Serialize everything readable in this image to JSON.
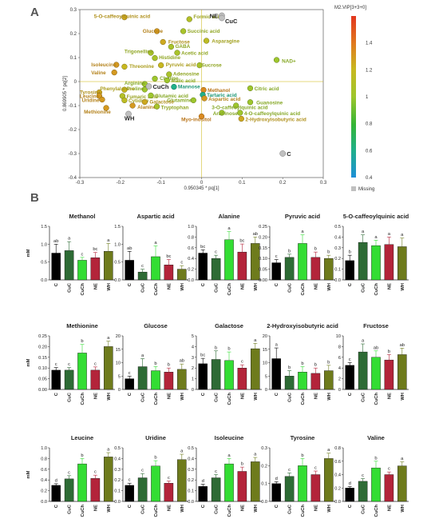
{
  "panel_labels": {
    "a": "A",
    "b": "B"
  },
  "colors": {
    "C": "#000000",
    "CuC": "#2e6b35",
    "CuCh": "#33dd33",
    "NE": "#b3243a",
    "WH": "#6e7b1c",
    "missing": "#c0c0c0",
    "gradient": [
      "#1e8fd8",
      "#20b08a",
      "#35b535",
      "#9ec62d",
      "#c8b820",
      "#e07a1f",
      "#e2361f"
    ]
  },
  "chart_data": [
    {
      "type": "scatter",
      "title": "",
      "xlabel": "0.950345 * pq[1]",
      "ylabel": "0.869905 * pq[2]",
      "xlim": [
        -0.3,
        0.3
      ],
      "ylim": [
        -0.4,
        0.3
      ],
      "xticks": [
        "-0.3",
        "-0.2",
        "-0.1",
        "0",
        "0.1",
        "0.2",
        "0.3"
      ],
      "yticks": [
        "-0.4",
        "-0.3",
        "-0.2",
        "-0.1",
        "0",
        "0.1",
        "0.2",
        "0.3"
      ],
      "colorbar": {
        "title": "M2.VIP[3+3+0]",
        "ticks": [
          "0.4",
          "0.6",
          "0.8",
          "1",
          "1.2",
          "1.4"
        ],
        "range": [
          0.4,
          1.6
        ],
        "missing_label": "Missing"
      },
      "grid": false,
      "points": [
        {
          "label": "5-O-caffeoylquinic acid",
          "x": -0.19,
          "y": 0.268,
          "vip": 1.25,
          "lx": -0.265,
          "ly": 0.272
        },
        {
          "label": "Formic acid",
          "x": -0.03,
          "y": 0.26,
          "vip": 1.1,
          "lx": -0.02,
          "ly": 0.27
        },
        {
          "label": "Glucose",
          "x": -0.11,
          "y": 0.21,
          "vip": 1.3,
          "lx": -0.145,
          "ly": 0.21
        },
        {
          "label": "Succinic acid",
          "x": -0.045,
          "y": 0.21,
          "vip": 1.05,
          "lx": -0.035,
          "ly": 0.21
        },
        {
          "label": "Fructose",
          "x": -0.095,
          "y": 0.165,
          "vip": 1.25,
          "lx": -0.082,
          "ly": 0.165
        },
        {
          "label": "Asparagine",
          "x": 0.012,
          "y": 0.17,
          "vip": 1.15,
          "lx": 0.025,
          "ly": 0.168
        },
        {
          "label": "GABA",
          "x": -0.075,
          "y": 0.145,
          "vip": 1.05,
          "lx": -0.065,
          "ly": 0.146
        },
        {
          "label": "Trigonelline",
          "x": -0.125,
          "y": 0.12,
          "vip": 1.05,
          "lx": -0.19,
          "ly": 0.125
        },
        {
          "label": "Acetic acid",
          "x": -0.06,
          "y": 0.12,
          "vip": 1.05,
          "lx": -0.05,
          "ly": 0.118
        },
        {
          "label": "Histidine",
          "x": -0.115,
          "y": 0.098,
          "vip": 1.05,
          "lx": -0.105,
          "ly": 0.1
        },
        {
          "label": "NAD+",
          "x": 0.185,
          "y": 0.09,
          "vip": 1.0,
          "lx": 0.198,
          "ly": 0.085
        },
        {
          "label": "Isoleucine",
          "x": -0.21,
          "y": 0.07,
          "vip": 1.3,
          "lx": -0.272,
          "ly": 0.07
        },
        {
          "label": "Threonine",
          "x": -0.19,
          "y": 0.062,
          "vip": 1.2,
          "lx": -0.178,
          "ly": 0.064
        },
        {
          "label": "Pyruvic acid",
          "x": -0.1,
          "y": 0.068,
          "vip": 1.2,
          "lx": -0.088,
          "ly": 0.07
        },
        {
          "label": "Sucrose",
          "x": -0.005,
          "y": 0.068,
          "vip": 1.05,
          "lx": 0.0,
          "ly": 0.068
        },
        {
          "label": "Valine",
          "x": -0.215,
          "y": 0.038,
          "vip": 1.3,
          "lx": -0.272,
          "ly": 0.036
        },
        {
          "label": "Adenosine",
          "x": -0.08,
          "y": 0.03,
          "vip": 1.05,
          "lx": -0.07,
          "ly": 0.032
        },
        {
          "label": "Choline",
          "x": -0.115,
          "y": 0.012,
          "vip": 1.0,
          "lx": -0.103,
          "ly": 0.013
        },
        {
          "label": "Malic acid",
          "x": -0.085,
          "y": 0.005,
          "vip": 1.0,
          "lx": -0.075,
          "ly": 0.004
        },
        {
          "label": "Arginine",
          "x": -0.14,
          "y": -0.01,
          "vip": 1.0,
          "lx": -0.19,
          "ly": -0.006
        },
        {
          "label": "Proline",
          "x": -0.14,
          "y": -0.033,
          "vip": 1.0,
          "lx": -0.185,
          "ly": -0.03
        },
        {
          "label": "Mannose",
          "x": -0.068,
          "y": -0.022,
          "vip": 0.6,
          "lx": -0.058,
          "ly": -0.022
        },
        {
          "label": "Tyrosine",
          "x": -0.252,
          "y": -0.045,
          "vip": 1.25,
          "lx": -0.3,
          "ly": -0.045
        },
        {
          "label": "Phenylalanine",
          "x": -0.19,
          "y": -0.034,
          "vip": 1.2,
          "lx": -0.25,
          "ly": -0.03
        },
        {
          "label": "Methanol",
          "x": 0.005,
          "y": -0.035,
          "vip": 1.35,
          "lx": 0.015,
          "ly": -0.037
        },
        {
          "label": "Citric acid",
          "x": 0.12,
          "y": -0.028,
          "vip": 1.0,
          "lx": 0.13,
          "ly": -0.03
        },
        {
          "label": "Leucine",
          "x": -0.252,
          "y": -0.06,
          "vip": 1.3,
          "lx": -0.3,
          "ly": -0.062
        },
        {
          "label": "Fumaric acid",
          "x": -0.195,
          "y": -0.06,
          "vip": 1.1,
          "lx": -0.185,
          "ly": -0.063
        },
        {
          "label": "Glutamic acid",
          "x": -0.125,
          "y": -0.058,
          "vip": 1.0,
          "lx": -0.115,
          "ly": -0.06
        },
        {
          "label": "Tartaric acid",
          "x": 0.003,
          "y": -0.055,
          "vip": 0.6,
          "lx": 0.013,
          "ly": -0.056
        },
        {
          "label": "Uridine",
          "x": -0.245,
          "y": -0.075,
          "vip": 1.3,
          "lx": -0.295,
          "ly": -0.079
        },
        {
          "label": "Cytidine",
          "x": -0.19,
          "y": -0.078,
          "vip": 1.15,
          "lx": -0.18,
          "ly": -0.08
        },
        {
          "label": "Glutamine",
          "x": -0.02,
          "y": -0.078,
          "vip": 1.0,
          "lx": -0.085,
          "ly": -0.078
        },
        {
          "label": "Aspartic acid",
          "x": 0.007,
          "y": -0.07,
          "vip": 1.3,
          "lx": 0.017,
          "ly": -0.073
        },
        {
          "label": "Galactose",
          "x": -0.14,
          "y": -0.085,
          "vip": 1.25,
          "lx": -0.128,
          "ly": -0.085
        },
        {
          "label": "Guanosine",
          "x": 0.12,
          "y": -0.086,
          "vip": 1.0,
          "lx": 0.135,
          "ly": -0.088
        },
        {
          "label": "Alanine",
          "x": -0.17,
          "y": -0.1,
          "vip": 1.3,
          "lx": -0.158,
          "ly": -0.106
        },
        {
          "label": "Tryptophan",
          "x": -0.11,
          "y": -0.104,
          "vip": 1.05,
          "lx": -0.1,
          "ly": -0.108
        },
        {
          "label": "3-O-caffeoylquinic acid",
          "x": 0.085,
          "y": -0.1,
          "vip": 1.0,
          "lx": 0.025,
          "ly": -0.108
        },
        {
          "label": "Methionine",
          "x": -0.235,
          "y": -0.11,
          "vip": 1.3,
          "lx": -0.29,
          "ly": -0.126
        },
        {
          "label": "Arabinose",
          "x": 0.05,
          "y": -0.13,
          "vip": 1.0,
          "lx": 0.028,
          "ly": -0.133
        },
        {
          "label": "4-O-caffeoylquinic acid",
          "x": 0.095,
          "y": -0.13,
          "vip": 1.0,
          "lx": 0.105,
          "ly": -0.133
        },
        {
          "label": "2-Hydroxyisobutyric acid",
          "x": 0.098,
          "y": -0.155,
          "vip": 1.25,
          "lx": 0.108,
          "ly": -0.158
        },
        {
          "label": "Myo-inositol",
          "x": 0.0,
          "y": -0.145,
          "vip": 1.35,
          "lx": -0.05,
          "ly": -0.158
        }
      ],
      "groups": [
        {
          "label": "NE",
          "x": 0.05,
          "y": 0.275,
          "lx": 0.02,
          "ly": 0.275
        },
        {
          "label": "CuC",
          "x": 0.05,
          "y": 0.265,
          "lx": 0.058,
          "ly": 0.253
        },
        {
          "label": "CuCh",
          "x": -0.13,
          "y": -0.02,
          "lx": -0.12,
          "ly": -0.02
        },
        {
          "label": "WH",
          "x": -0.18,
          "y": -0.135,
          "lx": -0.19,
          "ly": -0.152
        },
        {
          "label": "C",
          "x": 0.2,
          "y": -0.3,
          "lx": 0.21,
          "ly": -0.3
        }
      ]
    },
    {
      "type": "bar",
      "title": "Methanol",
      "categories": [
        "C",
        "CuC",
        "CuCh",
        "NE",
        "WH"
      ],
      "ylabel": "mM",
      "ylim": [
        0,
        1.5
      ],
      "yticks": [
        "0.0",
        "0.5",
        "1.0",
        "1.5"
      ],
      "values": [
        0.75,
        0.82,
        0.55,
        0.62,
        0.8
      ],
      "errors": [
        0.25,
        0.25,
        0.08,
        0.15,
        0.22
      ],
      "letters": [
        "ab",
        "a",
        "c",
        "bc",
        "a"
      ]
    },
    {
      "type": "bar",
      "title": "Aspartic acid",
      "categories": [
        "C",
        "CuC",
        "CuCh",
        "NE",
        "WH"
      ],
      "ylabel": "",
      "ylim": [
        0,
        1.5
      ],
      "yticks": [
        "0.0",
        "0.5",
        "1.0",
        "1.5"
      ],
      "values": [
        0.55,
        0.22,
        0.65,
        0.42,
        0.3
      ],
      "errors": [
        0.25,
        0.08,
        0.3,
        0.15,
        0.1
      ],
      "letters": [
        "ab",
        "c",
        "a",
        "bc",
        "c"
      ]
    },
    {
      "type": "bar",
      "title": "Alanine",
      "categories": [
        "C",
        "CuC",
        "CuCh",
        "NE",
        "WH"
      ],
      "ylabel": "",
      "ylim": [
        0,
        1.0
      ],
      "yticks": [
        "0.0",
        "0.2",
        "0.4",
        "0.6",
        "0.8",
        "1.0"
      ],
      "values": [
        0.5,
        0.4,
        0.75,
        0.52,
        0.68
      ],
      "errors": [
        0.06,
        0.06,
        0.15,
        0.15,
        0.12
      ],
      "letters": [
        "bc",
        "c",
        "a",
        "bc",
        "ab"
      ]
    },
    {
      "type": "bar",
      "title": "Pyruvic acid",
      "categories": [
        "C",
        "CuC",
        "CuCh",
        "NE",
        "WH"
      ],
      "ylabel": "",
      "ylim": [
        0,
        0.25
      ],
      "yticks": [
        "0.00",
        "0.05",
        "0.10",
        "0.15",
        "0.20",
        "0.25"
      ],
      "values": [
        0.08,
        0.105,
        0.17,
        0.105,
        0.1
      ],
      "errors": [
        0.015,
        0.015,
        0.04,
        0.025,
        0.015
      ],
      "letters": [
        "c",
        "b",
        "a",
        "b",
        "b"
      ]
    },
    {
      "type": "bar",
      "title": "5-O-caffeoylquinic acid",
      "categories": [
        "C",
        "CuC",
        "CuCh",
        "NE",
        "WH"
      ],
      "ylabel": "",
      "ylim": [
        0,
        0.5
      ],
      "yticks": [
        "0.0",
        "0.1",
        "0.2",
        "0.3",
        "0.4",
        "0.5"
      ],
      "values": [
        0.18,
        0.35,
        0.32,
        0.33,
        0.31
      ],
      "errors": [
        0.05,
        0.07,
        0.05,
        0.07,
        0.08
      ],
      "letters": [
        "b",
        "a",
        "a",
        "a",
        "a"
      ]
    },
    {
      "type": "bar",
      "title": "Methionine",
      "categories": [
        "C",
        "CuC",
        "CuCh",
        "NE",
        "WH"
      ],
      "ylabel": "mM",
      "ylim": [
        0,
        0.25
      ],
      "yticks": [
        "0.00",
        "0.05",
        "0.10",
        "0.15",
        "0.20",
        "0.25"
      ],
      "values": [
        0.09,
        0.09,
        0.17,
        0.09,
        0.2
      ],
      "errors": [
        0.012,
        0.012,
        0.04,
        0.015,
        0.025
      ],
      "letters": [
        "c",
        "c",
        "b",
        "c",
        "a"
      ]
    },
    {
      "type": "bar",
      "title": "Glucose",
      "categories": [
        "C",
        "CuC",
        "CuCh",
        "NE",
        "WH"
      ],
      "ylabel": "",
      "ylim": [
        0,
        20
      ],
      "yticks": [
        "0",
        "5",
        "10",
        "15",
        "20"
      ],
      "values": [
        4,
        8.5,
        7,
        6.5,
        7.5
      ],
      "errors": [
        1,
        3,
        1.5,
        1.5,
        2
      ],
      "letters": [
        "c",
        "a",
        "b",
        "b",
        "ab"
      ]
    },
    {
      "type": "bar",
      "title": "Galactose",
      "categories": [
        "C",
        "CuC",
        "CuCh",
        "NE",
        "WH"
      ],
      "ylabel": "",
      "ylim": [
        0,
        5
      ],
      "yticks": [
        "0",
        "1",
        "2",
        "3",
        "4",
        "5"
      ],
      "values": [
        2.4,
        2.8,
        2.7,
        2.0,
        3.8
      ],
      "errors": [
        0.5,
        0.8,
        0.8,
        0.3,
        0.5
      ],
      "letters": [
        "bc",
        "b",
        "b",
        "c",
        "a"
      ]
    },
    {
      "type": "bar",
      "title": "2-Hydroxyisobutyric acid",
      "categories": [
        "C",
        "CuC",
        "CuCh",
        "NE",
        "WH"
      ],
      "ylabel": "",
      "ylim": [
        0,
        20
      ],
      "yticks": [
        "0",
        "5",
        "10",
        "15",
        "20"
      ],
      "values": [
        11.5,
        5,
        6.5,
        6,
        7
      ],
      "errors": [
        4,
        2,
        2,
        2,
        2
      ],
      "letters": [
        "a",
        "b",
        "b",
        "b",
        "b"
      ]
    },
    {
      "type": "bar",
      "title": "Fructose",
      "categories": [
        "C",
        "CuC",
        "CuCh",
        "NE",
        "WH"
      ],
      "ylabel": "",
      "ylim": [
        0,
        10
      ],
      "yticks": [
        "0",
        "2",
        "4",
        "6",
        "8",
        "10"
      ],
      "values": [
        4.5,
        7,
        6,
        5.5,
        6.5
      ],
      "errors": [
        0.5,
        1.5,
        1.2,
        1,
        1.2
      ],
      "letters": [
        "c",
        "a",
        "ab",
        "b",
        "ab"
      ]
    },
    {
      "type": "bar",
      "title": "Leucine",
      "categories": [
        "C",
        "CuC",
        "CuCh",
        "NE",
        "WH"
      ],
      "ylabel": "mM",
      "ylim": [
        0,
        1.0
      ],
      "yticks": [
        "0.0",
        "0.2",
        "0.4",
        "0.6",
        "0.8",
        "1.0"
      ],
      "values": [
        0.3,
        0.42,
        0.7,
        0.43,
        0.83
      ],
      "errors": [
        0.03,
        0.06,
        0.1,
        0.06,
        0.08
      ],
      "letters": [
        "d",
        "c",
        "b",
        "c",
        "a"
      ]
    },
    {
      "type": "bar",
      "title": "Uridine",
      "categories": [
        "C",
        "CuC",
        "CuCh",
        "NE",
        "WH"
      ],
      "ylabel": "",
      "ylim": [
        0,
        0.5
      ],
      "yticks": [
        "0.0",
        "0.1",
        "0.2",
        "0.3",
        "0.4",
        "0.5"
      ],
      "values": [
        0.15,
        0.22,
        0.33,
        0.17,
        0.39
      ],
      "errors": [
        0.02,
        0.04,
        0.05,
        0.02,
        0.05
      ],
      "letters": [
        "c",
        "c",
        "b",
        "c",
        "a"
      ]
    },
    {
      "type": "bar",
      "title": "Isoleucine",
      "categories": [
        "C",
        "CuC",
        "CuCh",
        "NE",
        "WH"
      ],
      "ylabel": "",
      "ylim": [
        0,
        0.5
      ],
      "yticks": [
        "0.0",
        "0.1",
        "0.2",
        "0.3",
        "0.4",
        "0.5"
      ],
      "values": [
        0.14,
        0.22,
        0.35,
        0.28,
        0.37
      ],
      "errors": [
        0.02,
        0.03,
        0.05,
        0.04,
        0.04
      ],
      "letters": [
        "d",
        "c",
        "a",
        "b",
        "a"
      ]
    },
    {
      "type": "bar",
      "title": "Tyrosine",
      "categories": [
        "C",
        "CuC",
        "CuCh",
        "NE",
        "WH"
      ],
      "ylabel": "",
      "ylim": [
        0,
        0.3
      ],
      "yticks": [
        "0.0",
        "0.1",
        "0.2",
        "0.3"
      ],
      "values": [
        0.1,
        0.14,
        0.2,
        0.15,
        0.24
      ],
      "errors": [
        0.01,
        0.02,
        0.04,
        0.02,
        0.03
      ],
      "letters": [
        "d",
        "c",
        "b",
        "c",
        "a"
      ]
    },
    {
      "type": "bar",
      "title": "Valine",
      "categories": [
        "C",
        "CuC",
        "CuCh",
        "NE",
        "WH"
      ],
      "ylabel": "",
      "ylim": [
        0,
        0.8
      ],
      "yticks": [
        "0.0",
        "0.2",
        "0.4",
        "0.6",
        "0.8"
      ],
      "values": [
        0.2,
        0.3,
        0.5,
        0.4,
        0.53
      ],
      "errors": [
        0.02,
        0.04,
        0.1,
        0.04,
        0.06
      ],
      "letters": [
        "d",
        "c",
        "b",
        "c",
        "a"
      ]
    }
  ]
}
